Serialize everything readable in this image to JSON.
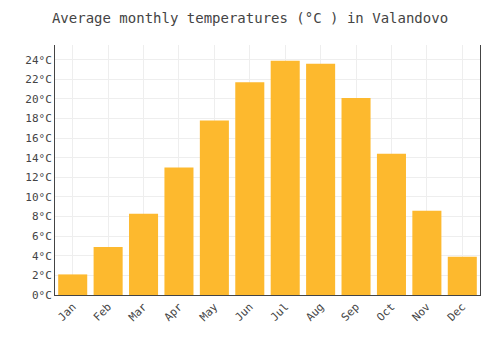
{
  "chart_data": {
    "type": "bar",
    "title": "Average monthly temperatures (°C ) in Valandovo",
    "categories": [
      "Jan",
      "Feb",
      "Mar",
      "Apr",
      "May",
      "Jun",
      "Jul",
      "Aug",
      "Sep",
      "Oct",
      "Nov",
      "Dec"
    ],
    "values": [
      2.1,
      4.9,
      8.3,
      13.0,
      17.8,
      21.7,
      23.9,
      23.6,
      20.1,
      14.4,
      8.6,
      3.9
    ],
    "color": "#FDB92E",
    "ylim": [
      0,
      25.5
    ],
    "yticks": [
      {
        "value": 0,
        "label": "0°C"
      },
      {
        "value": 2,
        "label": "2°C"
      },
      {
        "value": 4,
        "label": "4°C"
      },
      {
        "value": 6,
        "label": "6°C"
      },
      {
        "value": 8,
        "label": "8°C"
      },
      {
        "value": 10,
        "label": "10°C"
      },
      {
        "value": 12,
        "label": "12°C"
      },
      {
        "value": 14,
        "label": "14°C"
      },
      {
        "value": 16,
        "label": "16°C"
      },
      {
        "value": 18,
        "label": "18°C"
      },
      {
        "value": 20,
        "label": "20°C"
      },
      {
        "value": 22,
        "label": "22°C"
      },
      {
        "value": 24,
        "label": "24°C"
      }
    ],
    "grid": true
  }
}
